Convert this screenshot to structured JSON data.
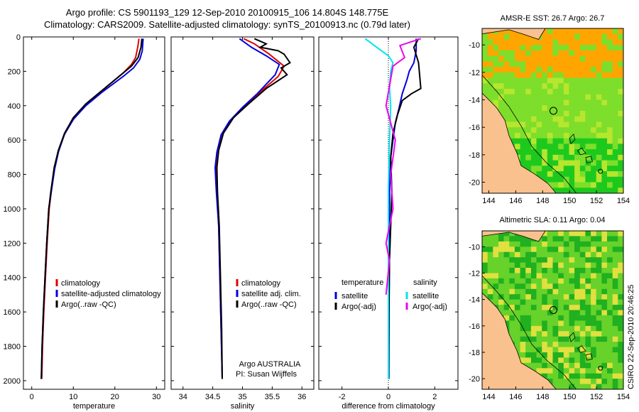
{
  "header": {
    "line1": "Argo profile: CS 5901193_129 12-Sep-2010 20100915_106 14.804S 148.775E",
    "line2": "Climatology: CARS2009. Satellite-adjusted climatology: synTS_20100913.nc (0.79d later)"
  },
  "footer_stamp": "CSIRO 22-Sep-2010 20:46:25",
  "colors": {
    "red": "#e00000",
    "blue": "#0000e0",
    "black": "#000000",
    "cyan": "#00e5ee",
    "magenta": "#ee00ee",
    "land": "#f9c18e"
  },
  "chart_data": [
    {
      "type": "line",
      "id": "temperature",
      "xlabel": "temperature",
      "xlim": [
        -2,
        32
      ],
      "ylim": [
        2050,
        0
      ],
      "xticks": [
        0,
        10,
        20,
        30
      ],
      "yticks": [
        0,
        200,
        400,
        600,
        800,
        1000,
        1200,
        1400,
        1600,
        1800,
        2000
      ],
      "legend": [
        "climatology",
        "satellite-adjusted climatology",
        "Argo(..raw -QC)"
      ],
      "series": [
        {
          "name": "climatology",
          "color": "red",
          "points": [
            [
              25.8,
              10
            ],
            [
              25.5,
              60
            ],
            [
              25,
              120
            ],
            [
              24,
              160
            ],
            [
              22,
              210
            ],
            [
              18,
              290
            ],
            [
              14,
              370
            ],
            [
              10.5,
              460
            ],
            [
              8,
              560
            ],
            [
              6.5,
              660
            ],
            [
              5.5,
              760
            ],
            [
              4.7,
              900
            ],
            [
              4.2,
              1000
            ],
            [
              3.7,
              1200
            ],
            [
              3.3,
              1400
            ],
            [
              2.9,
              1600
            ],
            [
              2.6,
              1800
            ],
            [
              2.4,
              1990
            ]
          ]
        },
        {
          "name": "satellite-adjusted climatology",
          "color": "blue",
          "points": [
            [
              26.8,
              10
            ],
            [
              26.6,
              80
            ],
            [
              26,
              130
            ],
            [
              24.5,
              180
            ],
            [
              22,
              230
            ],
            [
              17,
              320
            ],
            [
              13,
              400
            ],
            [
              10,
              480
            ],
            [
              7.8,
              570
            ],
            [
              6.4,
              670
            ],
            [
              5.5,
              770
            ],
            [
              4.7,
              900
            ],
            [
              4.1,
              1000
            ],
            [
              3.6,
              1200
            ],
            [
              3.2,
              1400
            ],
            [
              2.8,
              1600
            ],
            [
              2.5,
              1800
            ],
            [
              2.3,
              1990
            ]
          ]
        },
        {
          "name": "Argo(..raw -QC)",
          "color": "black",
          "points": [
            [
              26.5,
              10
            ],
            [
              26.3,
              60
            ],
            [
              25.6,
              120
            ],
            [
              24,
              170
            ],
            [
              21.5,
              220
            ],
            [
              17.5,
              300
            ],
            [
              13,
              390
            ],
            [
              10,
              470
            ],
            [
              7.9,
              560
            ],
            [
              6.4,
              660
            ],
            [
              5.4,
              760
            ],
            [
              4.6,
              900
            ],
            [
              4.1,
              1000
            ],
            [
              3.6,
              1200
            ],
            [
              3.2,
              1400
            ],
            [
              2.8,
              1600
            ],
            [
              2.5,
              1800
            ],
            [
              2.3,
              1990
            ]
          ]
        }
      ]
    },
    {
      "type": "line",
      "id": "salinity",
      "xlabel": "salinity",
      "xlim": [
        33.8,
        36.2
      ],
      "ylim": [
        2050,
        0
      ],
      "xticks": [
        34,
        34.5,
        35,
        35.5,
        36
      ],
      "xticklabels": [
        "34",
        "34.5",
        "35",
        "35.5",
        "36"
      ],
      "legend": [
        "climatology",
        "satellite adj. clim.",
        "Argo(..raw -QC)"
      ],
      "annotation": [
        "Argo AUSTRALIA",
        "PI: Susan Wijffels"
      ],
      "series": [
        {
          "name": "climatology",
          "color": "red",
          "points": [
            [
              35.02,
              10
            ],
            [
              35.2,
              40
            ],
            [
              35.45,
              100
            ],
            [
              35.7,
              170
            ],
            [
              35.6,
              230
            ],
            [
              35.3,
              320
            ],
            [
              35.05,
              400
            ],
            [
              34.82,
              480
            ],
            [
              34.66,
              560
            ],
            [
              34.58,
              660
            ],
            [
              34.55,
              760
            ],
            [
              34.57,
              900
            ],
            [
              34.6,
              1100
            ],
            [
              34.62,
              1400
            ],
            [
              34.64,
              1700
            ],
            [
              34.66,
              1990
            ]
          ]
        },
        {
          "name": "satellite adj. clim.",
          "color": "blue",
          "points": [
            [
              34.95,
              10
            ],
            [
              35.15,
              60
            ],
            [
              35.4,
              110
            ],
            [
              35.62,
              160
            ],
            [
              35.55,
              220
            ],
            [
              35.25,
              330
            ],
            [
              35,
              410
            ],
            [
              34.78,
              490
            ],
            [
              34.64,
              570
            ],
            [
              34.57,
              670
            ],
            [
              34.54,
              760
            ],
            [
              34.56,
              900
            ],
            [
              34.6,
              1100
            ],
            [
              34.62,
              1400
            ],
            [
              34.64,
              1700
            ],
            [
              34.66,
              1990
            ]
          ]
        },
        {
          "name": "Argo(..raw -QC)",
          "color": "black",
          "points": [
            [
              35.2,
              10
            ],
            [
              35.4,
              40
            ],
            [
              35.3,
              60
            ],
            [
              35.6,
              80
            ],
            [
              35.7,
              100
            ],
            [
              35.8,
              150
            ],
            [
              35.65,
              180
            ],
            [
              35.75,
              220
            ],
            [
              35.4,
              300
            ],
            [
              35.1,
              390
            ],
            [
              34.85,
              470
            ],
            [
              34.68,
              560
            ],
            [
              34.6,
              660
            ],
            [
              34.57,
              760
            ],
            [
              34.58,
              900
            ],
            [
              34.61,
              1100
            ],
            [
              34.63,
              1400
            ],
            [
              34.65,
              1700
            ],
            [
              34.66,
              1990
            ]
          ]
        }
      ]
    },
    {
      "type": "line",
      "id": "difference",
      "xlabel": "difference from climatology",
      "xlim": [
        -3,
        3
      ],
      "ylim": [
        2050,
        0
      ],
      "xticks": [
        -2,
        0,
        2
      ],
      "legend_headers": [
        "temperature",
        "salinity"
      ],
      "legend": [
        "satellite",
        "Argo(-adj)",
        "satellite",
        "Argo(-adj)"
      ],
      "series": [
        {
          "name": "temperature satellite",
          "color": "blue",
          "points": [
            [
              1.2,
              10
            ],
            [
              1.2,
              80
            ],
            [
              1.1,
              150
            ],
            [
              0.9,
              200
            ],
            [
              0.8,
              250
            ],
            [
              0.6,
              330
            ],
            [
              0.45,
              420
            ],
            [
              0.3,
              500
            ],
            [
              0.2,
              600
            ],
            [
              0.1,
              700
            ],
            [
              0.05,
              900
            ],
            [
              0.05,
              1200
            ],
            [
              0.03,
              1600
            ],
            [
              0.02,
              1990
            ]
          ]
        },
        {
          "name": "temperature Argo(-adj)",
          "color": "black",
          "points": [
            [
              1.3,
              10
            ],
            [
              1.1,
              60
            ],
            [
              1.3,
              150
            ],
            [
              1.4,
              300
            ],
            [
              1,
              330
            ],
            [
              0.6,
              370
            ],
            [
              0.4,
              450
            ],
            [
              0.2,
              560
            ],
            [
              0.1,
              700
            ],
            [
              0.15,
              900
            ],
            [
              0.1,
              1100
            ],
            [
              0.05,
              1300
            ],
            [
              0.02,
              1600
            ],
            [
              0.01,
              1990
            ]
          ]
        },
        {
          "name": "salinity satellite",
          "color": "cyan",
          "points": [
            [
              -1,
              10
            ],
            [
              -0.7,
              40
            ],
            [
              -0.3,
              80
            ],
            [
              0,
              110
            ],
            [
              0.2,
              150
            ],
            [
              0.1,
              200
            ],
            [
              0.05,
              300
            ],
            [
              0.1,
              400
            ],
            [
              0.05,
              600
            ],
            [
              0,
              900
            ],
            [
              0,
              1400
            ],
            [
              0,
              1990
            ]
          ]
        },
        {
          "name": "salinity Argo(-adj)",
          "color": "magenta",
          "points": [
            [
              1.4,
              10
            ],
            [
              0.5,
              50
            ],
            [
              0.7,
              120
            ],
            [
              0.2,
              170
            ],
            [
              -0.1,
              400
            ],
            [
              0.3,
              600
            ],
            [
              0.1,
              800
            ],
            [
              0.2,
              1000
            ],
            [
              -0.1,
              1200
            ],
            [
              0.05,
              1300
            ],
            [
              -0.1,
              1500
            ]
          ]
        }
      ]
    }
  ],
  "maps": [
    {
      "title": "AMSR-E SST: 26.7 Argo: 26.7",
      "xticks": [
        144,
        146,
        148,
        150,
        152,
        154
      ],
      "yticks": [
        -10,
        -12,
        -14,
        -16,
        -18,
        -20
      ],
      "profile_marker": {
        "lon": 148.8,
        "lat": -14.8
      },
      "secondary_marker": {
        "lon": 152.3,
        "lat": -19.2
      },
      "warm_color": "#ffa500",
      "mid_color": "#7dde2b",
      "cool_color": "#1ec91e"
    },
    {
      "title": "Altimetric SLA: 0.11 Argo: 0.04",
      "xticks": [
        144,
        146,
        148,
        150,
        152,
        154
      ],
      "yticks": [
        -10,
        -12,
        -14,
        -16,
        -18,
        -20
      ],
      "profile_marker": {
        "lon": 148.8,
        "lat": -14.8
      },
      "secondary_marker": {
        "lon": 152.3,
        "lat": -19.2
      },
      "warm_color": "#e0e040",
      "mid_color": "#66d22a",
      "cool_color": "#20b020"
    }
  ]
}
